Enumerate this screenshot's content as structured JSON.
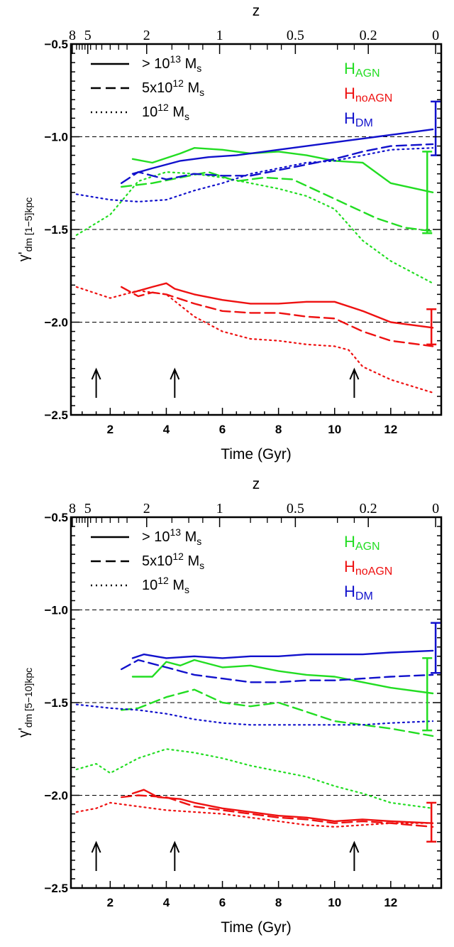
{
  "panels": [
    {
      "x_title": "Time (Gyr)",
      "top_title": "z",
      "y_title_main": "γ'",
      "y_title_sub": "dm  [1−5]kpc",
      "legend": [
        {
          "style": "solid",
          "prefix": "> 10",
          "sup": "13",
          "unit": " M",
          "unit_sub": "s"
        },
        {
          "style": "dashed",
          "prefix": "5x10",
          "sup": "12",
          "unit": " M",
          "unit_sub": "s"
        },
        {
          "style": "dotted",
          "prefix": "10",
          "sup": "12",
          "unit": " M",
          "unit_sub": "s"
        }
      ],
      "color_labels": [
        {
          "main": "H",
          "sub": "AGN",
          "color": "#22dd22"
        },
        {
          "main": "H",
          "sub": "noAGN",
          "color": "#ee1111"
        },
        {
          "main": "H",
          "sub": "DM",
          "color": "#1111cc"
        }
      ]
    },
    {
      "x_title": "Time (Gyr)",
      "top_title": "z",
      "y_title_main": "γ'",
      "y_title_sub": "dm  [5−10]kpc",
      "legend": [
        {
          "style": "solid",
          "prefix": "> 10",
          "sup": "13",
          "unit": " M",
          "unit_sub": "s"
        },
        {
          "style": "dashed",
          "prefix": "5x10",
          "sup": "12",
          "unit": " M",
          "unit_sub": "s"
        },
        {
          "style": "dotted",
          "prefix": "10",
          "sup": "12",
          "unit": " M",
          "unit_sub": "s"
        }
      ],
      "color_labels": [
        {
          "main": "H",
          "sub": "AGN",
          "color": "#22dd22"
        },
        {
          "main": "H",
          "sub": "noAGN",
          "color": "#ee1111"
        },
        {
          "main": "H",
          "sub": "DM",
          "color": "#1111cc"
        }
      ]
    }
  ],
  "chart_data": [
    {
      "type": "line",
      "xlabel": "Time (Gyr)",
      "ylabel": "γ'dm [1−5]kpc",
      "top_axis_label": "z",
      "xlim": [
        0.6,
        13.8
      ],
      "ylim": [
        -2.5,
        -0.5
      ],
      "x_ticks": [
        2,
        4,
        6,
        8,
        10,
        12
      ],
      "x_tick_labels": [
        "2",
        "4",
        "6",
        "8",
        "10",
        "12"
      ],
      "y_ticks": [
        -2.5,
        -2.0,
        -1.5,
        -1.0,
        -0.5
      ],
      "y_tick_labels": [
        "−2.5",
        "−2.0",
        "−1.5",
        "−1.0",
        "−0.5"
      ],
      "top_ticks_z": [
        {
          "label": "8",
          "t": 0.65
        },
        {
          "label": "5",
          "t": 1.2
        },
        {
          "label": "2",
          "t": 3.3
        },
        {
          "label": "1",
          "t": 5.9
        },
        {
          "label": "0.5",
          "t": 8.6
        },
        {
          "label": "0.2",
          "t": 11.2
        },
        {
          "label": "0",
          "t": 13.6
        }
      ],
      "reference_lines_y": [
        -1.0,
        -1.5,
        -2.0
      ],
      "arrows_x": [
        1.5,
        4.3,
        10.7
      ],
      "series": [
        {
          "color": "#22dd22",
          "style": "solid",
          "x": [
            2.8,
            3.5,
            4.5,
            5.0,
            6.0,
            7.0,
            8.0,
            9.0,
            10.0,
            11.0,
            12.0,
            13.5
          ],
          "y": [
            -1.12,
            -1.14,
            -1.09,
            -1.06,
            -1.07,
            -1.09,
            -1.08,
            -1.1,
            -1.13,
            -1.14,
            -1.25,
            -1.3
          ]
        },
        {
          "color": "#22dd22",
          "style": "dashed",
          "x": [
            2.4,
            3.5,
            4.5,
            5.5,
            6.5,
            7.5,
            8.5,
            9.5,
            10.5,
            11.5,
            12.5,
            13.5
          ],
          "y": [
            -1.27,
            -1.25,
            -1.22,
            -1.19,
            -1.24,
            -1.22,
            -1.23,
            -1.3,
            -1.37,
            -1.44,
            -1.49,
            -1.51
          ]
        },
        {
          "color": "#22dd22",
          "style": "dotted",
          "x": [
            0.8,
            2.0,
            3.0,
            4.0,
            5.0,
            6.0,
            7.0,
            8.0,
            9.0,
            10.0,
            11.0,
            12.0,
            13.5
          ],
          "y": [
            -1.53,
            -1.42,
            -1.24,
            -1.19,
            -1.2,
            -1.22,
            -1.25,
            -1.28,
            -1.32,
            -1.39,
            -1.56,
            -1.67,
            -1.79
          ]
        },
        {
          "color": "#ee1111",
          "style": "solid",
          "x": [
            2.8,
            3.5,
            4.0,
            4.3,
            5.0,
            6.0,
            7.0,
            8.0,
            9.0,
            10.0,
            11.0,
            12.0,
            13.5
          ],
          "y": [
            -1.84,
            -1.81,
            -1.79,
            -1.82,
            -1.85,
            -1.88,
            -1.9,
            -1.9,
            -1.89,
            -1.89,
            -1.94,
            -2.0,
            -2.03
          ]
        },
        {
          "color": "#ee1111",
          "style": "dashed",
          "x": [
            2.4,
            3.0,
            3.5,
            4.0,
            5.0,
            6.0,
            7.0,
            8.0,
            9.0,
            10.0,
            11.0,
            12.0,
            13.5
          ],
          "y": [
            -1.81,
            -1.86,
            -1.84,
            -1.85,
            -1.9,
            -1.94,
            -1.95,
            -1.95,
            -1.97,
            -1.98,
            -2.05,
            -2.1,
            -2.13
          ]
        },
        {
          "color": "#ee1111",
          "style": "dotted",
          "x": [
            0.8,
            2.0,
            3.0,
            4.0,
            5.0,
            6.0,
            7.0,
            8.0,
            9.0,
            10.0,
            10.5,
            11.0,
            12.0,
            13.5
          ],
          "y": [
            -1.81,
            -1.87,
            -1.83,
            -1.85,
            -1.97,
            -2.05,
            -2.09,
            -2.1,
            -2.12,
            -2.13,
            -2.15,
            -2.24,
            -2.31,
            -2.38
          ]
        },
        {
          "color": "#1111cc",
          "style": "solid",
          "x": [
            2.8,
            3.5,
            4.5,
            5.5,
            6.5,
            7.5,
            8.5,
            9.5,
            10.5,
            11.5,
            12.5,
            13.5
          ],
          "y": [
            -1.2,
            -1.17,
            -1.13,
            -1.11,
            -1.1,
            -1.08,
            -1.06,
            -1.04,
            -1.02,
            -1.0,
            -0.98,
            -0.96
          ]
        },
        {
          "color": "#1111cc",
          "style": "dashed",
          "x": [
            2.4,
            3.0,
            4.0,
            5.0,
            6.0,
            7.0,
            8.0,
            9.0,
            10.0,
            11.0,
            12.0,
            13.5
          ],
          "y": [
            -1.25,
            -1.19,
            -1.23,
            -1.2,
            -1.21,
            -1.21,
            -1.18,
            -1.15,
            -1.12,
            -1.08,
            -1.05,
            -1.04
          ]
        },
        {
          "color": "#1111cc",
          "style": "dotted",
          "x": [
            0.8,
            2.0,
            3.0,
            4.0,
            5.0,
            6.0,
            7.0,
            8.0,
            9.0,
            10.0,
            11.0,
            12.0,
            13.5
          ],
          "y": [
            -1.31,
            -1.34,
            -1.35,
            -1.34,
            -1.29,
            -1.25,
            -1.2,
            -1.17,
            -1.14,
            -1.13,
            -1.1,
            -1.07,
            -1.06
          ]
        }
      ],
      "error_bars": [
        {
          "color": "#22dd22",
          "x": 13.3,
          "low": -1.52,
          "high": -1.08
        },
        {
          "color": "#ee1111",
          "x": 13.45,
          "low": -2.12,
          "high": -1.93
        },
        {
          "color": "#1111cc",
          "x": 13.6,
          "low": -1.1,
          "high": -0.81
        }
      ]
    },
    {
      "type": "line",
      "xlabel": "Time (Gyr)",
      "ylabel": "γ'dm [5−10]kpc",
      "top_axis_label": "z",
      "xlim": [
        0.6,
        13.8
      ],
      "ylim": [
        -2.5,
        -0.5
      ],
      "x_ticks": [
        2,
        4,
        6,
        8,
        10,
        12
      ],
      "x_tick_labels": [
        "2",
        "4",
        "6",
        "8",
        "10",
        "12"
      ],
      "y_ticks": [
        -2.5,
        -2.0,
        -1.5,
        -1.0,
        -0.5
      ],
      "y_tick_labels": [
        "−2.5",
        "−2.0",
        "−1.5",
        "−1.0",
        "−0.5"
      ],
      "top_ticks_z": [
        {
          "label": "8",
          "t": 0.65
        },
        {
          "label": "5",
          "t": 1.2
        },
        {
          "label": "2",
          "t": 3.3
        },
        {
          "label": "1",
          "t": 5.9
        },
        {
          "label": "0.5",
          "t": 8.6
        },
        {
          "label": "0.2",
          "t": 11.2
        },
        {
          "label": "0",
          "t": 13.6
        }
      ],
      "reference_lines_y": [
        -1.0,
        -1.5,
        -2.0
      ],
      "arrows_x": [
        1.5,
        4.3,
        10.7
      ],
      "series": [
        {
          "color": "#22dd22",
          "style": "solid",
          "x": [
            2.8,
            3.5,
            4.0,
            4.5,
            5.0,
            6.0,
            7.0,
            8.0,
            9.0,
            10.0,
            11.0,
            12.0,
            13.5
          ],
          "y": [
            -1.36,
            -1.36,
            -1.28,
            -1.3,
            -1.27,
            -1.31,
            -1.3,
            -1.33,
            -1.35,
            -1.36,
            -1.39,
            -1.42,
            -1.45
          ]
        },
        {
          "color": "#22dd22",
          "style": "dashed",
          "x": [
            2.4,
            3.0,
            4.0,
            5.0,
            6.0,
            7.0,
            8.0,
            9.0,
            10.0,
            11.0,
            12.0,
            13.5
          ],
          "y": [
            -1.54,
            -1.53,
            -1.47,
            -1.43,
            -1.5,
            -1.52,
            -1.5,
            -1.55,
            -1.6,
            -1.62,
            -1.64,
            -1.68
          ]
        },
        {
          "color": "#22dd22",
          "style": "dotted",
          "x": [
            0.8,
            1.5,
            2.0,
            3.0,
            4.0,
            5.0,
            6.0,
            7.0,
            8.0,
            9.0,
            10.0,
            11.0,
            12.0,
            13.5
          ],
          "y": [
            -1.86,
            -1.83,
            -1.88,
            -1.8,
            -1.75,
            -1.77,
            -1.8,
            -1.84,
            -1.87,
            -1.9,
            -1.95,
            -1.99,
            -2.04,
            -2.07
          ]
        },
        {
          "color": "#ee1111",
          "style": "solid",
          "x": [
            2.8,
            3.2,
            3.7,
            4.5,
            5.0,
            6.0,
            7.0,
            8.0,
            9.0,
            10.0,
            11.0,
            12.0,
            13.5
          ],
          "y": [
            -1.99,
            -1.97,
            -2.01,
            -2.02,
            -2.04,
            -2.07,
            -2.09,
            -2.11,
            -2.12,
            -2.14,
            -2.13,
            -2.14,
            -2.15
          ]
        },
        {
          "color": "#ee1111",
          "style": "dashed",
          "x": [
            2.4,
            3.0,
            4.0,
            5.0,
            6.0,
            7.0,
            8.0,
            9.0,
            10.0,
            11.0,
            12.0,
            13.5
          ],
          "y": [
            -2.01,
            -2.0,
            -2.01,
            -2.06,
            -2.08,
            -2.1,
            -2.12,
            -2.13,
            -2.15,
            -2.14,
            -2.15,
            -2.17
          ]
        },
        {
          "color": "#ee1111",
          "style": "dotted",
          "x": [
            0.8,
            1.5,
            2.0,
            3.0,
            4.0,
            5.0,
            6.0,
            7.0,
            8.0,
            9.0,
            10.0,
            11.0,
            12.0,
            13.5
          ],
          "y": [
            -2.09,
            -2.07,
            -2.04,
            -2.06,
            -2.08,
            -2.09,
            -2.1,
            -2.12,
            -2.14,
            -2.16,
            -2.17,
            -2.16,
            -2.15,
            -2.15
          ]
        },
        {
          "color": "#1111cc",
          "style": "solid",
          "x": [
            2.8,
            3.2,
            4.0,
            5.0,
            6.0,
            7.0,
            8.0,
            9.0,
            10.0,
            11.0,
            12.0,
            13.5
          ],
          "y": [
            -1.26,
            -1.24,
            -1.26,
            -1.25,
            -1.26,
            -1.25,
            -1.25,
            -1.24,
            -1.24,
            -1.24,
            -1.23,
            -1.22
          ]
        },
        {
          "color": "#1111cc",
          "style": "dashed",
          "x": [
            2.4,
            3.0,
            4.0,
            5.0,
            6.0,
            7.0,
            8.0,
            9.0,
            10.0,
            11.0,
            12.0,
            13.5
          ],
          "y": [
            -1.32,
            -1.27,
            -1.31,
            -1.35,
            -1.37,
            -1.39,
            -1.39,
            -1.38,
            -1.38,
            -1.37,
            -1.36,
            -1.35
          ]
        },
        {
          "color": "#1111cc",
          "style": "dotted",
          "x": [
            0.8,
            2.0,
            3.0,
            4.0,
            5.0,
            6.0,
            7.0,
            8.0,
            9.0,
            10.0,
            11.0,
            12.0,
            13.5
          ],
          "y": [
            -1.51,
            -1.53,
            -1.54,
            -1.56,
            -1.59,
            -1.61,
            -1.62,
            -1.62,
            -1.62,
            -1.62,
            -1.62,
            -1.61,
            -1.6
          ]
        }
      ],
      "error_bars": [
        {
          "color": "#22dd22",
          "x": 13.3,
          "low": -1.65,
          "high": -1.26
        },
        {
          "color": "#ee1111",
          "x": 13.45,
          "low": -2.25,
          "high": -2.04
        },
        {
          "color": "#1111cc",
          "x": 13.6,
          "low": -1.34,
          "high": -1.07
        }
      ]
    }
  ]
}
